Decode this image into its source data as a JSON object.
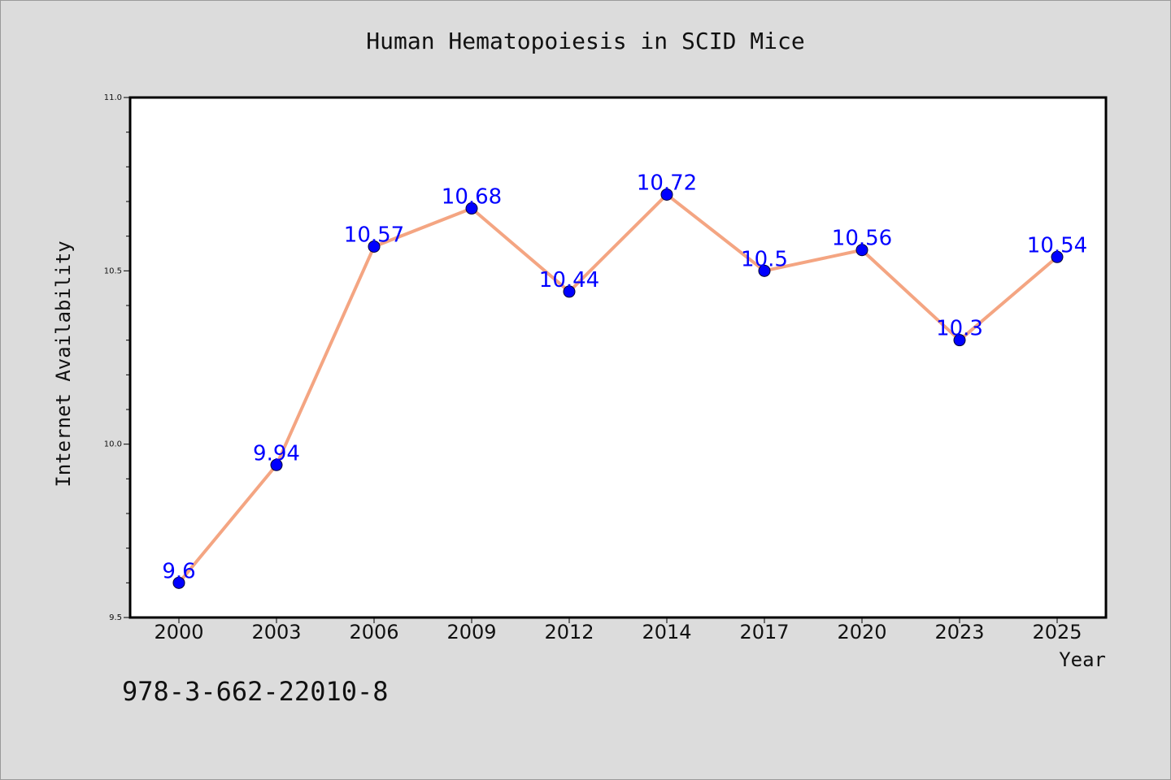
{
  "chart_data": {
    "type": "line",
    "title": "Human Hematopoiesis in SCID Mice",
    "xlabel": "Year",
    "ylabel": "Internet Availability",
    "categories": [
      "2000",
      "2003",
      "2006",
      "2009",
      "2012",
      "2014",
      "2017",
      "2020",
      "2023",
      "2025"
    ],
    "series": [
      {
        "values": [
          9.6,
          9.94,
          10.57,
          10.68,
          10.44,
          10.72,
          10.5,
          10.56,
          10.3,
          10.54
        ],
        "labels": [
          "9.6",
          "9.94",
          "10.57",
          "10.68",
          "10.44",
          "10.72",
          "10.5",
          "10.56",
          "10.3",
          "10.54"
        ],
        "line_color": "#f4a582",
        "marker_color": "#0000ff"
      }
    ],
    "ylim": [
      9.5,
      11.0
    ],
    "yticks": [
      "9.5",
      "10.0",
      "10.5",
      "11.0"
    ],
    "grid": false,
    "label_color": "#0000ff"
  },
  "footer": {
    "text": "978-3-662-22010-8"
  }
}
